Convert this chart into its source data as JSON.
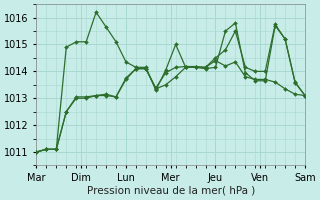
{
  "title": "",
  "xlabel": "Pression niveau de la mer( hPa )",
  "background_color": "#c8ede8",
  "grid_color": "#a8d8d0",
  "line_color": "#2d6e2d",
  "ylim": [
    1010.5,
    1016.5
  ],
  "xlim": [
    0,
    27
  ],
  "xtick_labels": [
    "Mar",
    "Dim",
    "Lun",
    "Mer",
    "Jeu",
    "Ven",
    "Sam"
  ],
  "xtick_positions": [
    0,
    4.5,
    9,
    13.5,
    18,
    22.5,
    27
  ],
  "ytick_positions": [
    1011,
    1012,
    1013,
    1014,
    1015,
    1016
  ],
  "line1_x": [
    0,
    1,
    2,
    3,
    4,
    5,
    6,
    7,
    8,
    9,
    10,
    11,
    12,
    13,
    14,
    15,
    16,
    17,
    18,
    19,
    20,
    21,
    22,
    23,
    24,
    25,
    26,
    27
  ],
  "line1_y": [
    1011.0,
    1011.1,
    1011.1,
    1014.9,
    1015.1,
    1015.1,
    1016.2,
    1015.65,
    1015.1,
    1014.35,
    1014.15,
    1014.15,
    1013.3,
    1014.05,
    1015.0,
    1014.15,
    1014.15,
    1014.1,
    1014.15,
    1015.5,
    1015.8,
    1013.95,
    1013.65,
    1013.65,
    1015.7,
    1015.2,
    1013.6,
    1013.1
  ],
  "line2_x": [
    0,
    1,
    2,
    3,
    4,
    5,
    6,
    7,
    8,
    9,
    10,
    11,
    12,
    13,
    14,
    15,
    16,
    17,
    18,
    19,
    20,
    21,
    22,
    23,
    24,
    25,
    26,
    27
  ],
  "line2_y": [
    1011.0,
    1011.1,
    1011.1,
    1012.5,
    1013.0,
    1013.0,
    1013.1,
    1013.1,
    1013.05,
    1013.7,
    1014.1,
    1014.1,
    1013.35,
    1013.5,
    1013.8,
    1014.15,
    1014.15,
    1014.15,
    1014.4,
    1014.2,
    1014.35,
    1013.8,
    1013.7,
    1013.7,
    1013.6,
    1013.35,
    1013.15,
    1013.1
  ],
  "line3_x": [
    0,
    1,
    2,
    3,
    4,
    5,
    6,
    7,
    8,
    9,
    10,
    11,
    12,
    13,
    14,
    15,
    16,
    17,
    18,
    19,
    20,
    21,
    22,
    23,
    24,
    25,
    26,
    27
  ],
  "line3_y": [
    1011.0,
    1011.1,
    1011.1,
    1012.5,
    1013.05,
    1013.05,
    1013.1,
    1013.15,
    1013.05,
    1013.75,
    1014.1,
    1014.1,
    1013.38,
    1013.95,
    1014.15,
    1014.18,
    1014.18,
    1014.15,
    1014.5,
    1014.8,
    1015.5,
    1014.15,
    1014.0,
    1014.0,
    1015.75,
    1015.2,
    1013.58,
    1013.1
  ],
  "xlabel_fontsize": 7.5,
  "tick_fontsize": 7
}
